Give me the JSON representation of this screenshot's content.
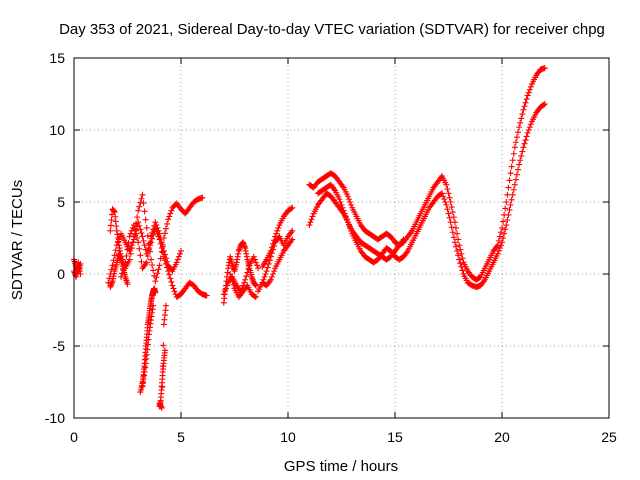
{
  "chart_data": {
    "type": "scatter",
    "title": "Day 353 of 2021, Sidereal Day-to-day VTEC variation (SDTVAR) for receiver chpg",
    "xlabel": "GPS time / hours",
    "ylabel": "SDTVAR / TECUs",
    "xlim": [
      0,
      25
    ],
    "ylim": [
      -10,
      15
    ],
    "xticks": [
      0,
      5,
      10,
      15,
      20,
      25
    ],
    "yticks": [
      -10,
      -5,
      0,
      5,
      10,
      15
    ],
    "grid": true,
    "marker": "+",
    "color": "#ff0000",
    "series": [
      {
        "name": "SDTVAR",
        "segments": [
          {
            "x": [
              0.0,
              0.1,
              0.2,
              0.3
            ],
            "y": [
              1.0,
              0.5,
              0.2,
              0.7
            ]
          },
          {
            "x": [
              0.0,
              0.1,
              0.2,
              0.3
            ],
            "y": [
              0.2,
              -0.2,
              0.8,
              0.0
            ]
          },
          {
            "x": [
              1.7,
              1.8,
              1.9,
              2.0,
              2.1,
              2.2,
              2.4,
              2.6,
              2.8,
              3.0,
              3.2,
              3.4,
              3.6,
              3.8,
              4.0,
              4.2,
              4.4,
              4.6,
              4.8,
              5.0,
              5.2,
              5.4,
              5.6,
              5.8,
              6.0
            ],
            "y": [
              3.0,
              4.5,
              4.3,
              3.0,
              2.0,
              1.2,
              0.4,
              1.0,
              2.6,
              4.4,
              5.5,
              3.2,
              1.0,
              -0.5,
              0.6,
              2.5,
              3.8,
              4.6,
              4.9,
              4.5,
              4.2,
              4.6,
              5.0,
              5.2,
              5.3
            ]
          },
          {
            "x": [
              1.6,
              1.8,
              2.0,
              2.2,
              2.4,
              2.6,
              2.8,
              3.0,
              3.2,
              3.4,
              3.6,
              3.8,
              4.0,
              4.2,
              4.4,
              4.6,
              4.8,
              5.0,
              5.2,
              5.4,
              5.6,
              5.8,
              6.0,
              6.2
            ],
            "y": [
              -0.6,
              0.6,
              2.0,
              2.8,
              2.2,
              1.6,
              2.4,
              3.6,
              2.6,
              1.4,
              2.2,
              3.2,
              2.4,
              1.2,
              0.2,
              -0.8,
              -1.6,
              -1.4,
              -1.0,
              -0.6,
              -0.8,
              -1.2,
              -1.4,
              -1.5
            ]
          },
          {
            "x": [
              2.2,
              2.4,
              2.6,
              2.8,
              3.0,
              3.2,
              3.4,
              3.6,
              3.8,
              4.0,
              4.2,
              4.4,
              4.6,
              4.8,
              5.0
            ],
            "y": [
              -0.2,
              0.8,
              2.6,
              3.4,
              2.2,
              0.4,
              0.8,
              2.6,
              3.6,
              2.8,
              1.6,
              0.6,
              0.2,
              0.8,
              1.6
            ]
          },
          {
            "x": [
              1.7,
              1.8,
              1.9,
              2.0,
              2.1,
              2.2,
              2.3,
              2.4,
              2.5
            ],
            "y": [
              -0.9,
              -0.5,
              0.2,
              0.8,
              1.4,
              1.0,
              0.4,
              -0.2,
              -0.7
            ]
          },
          {
            "x": [
              3.1,
              3.2,
              3.25,
              3.3,
              3.35,
              3.4,
              3.45,
              3.5,
              3.55,
              3.6,
              3.65,
              3.7,
              3.75,
              3.8
            ],
            "y": [
              -8.2,
              -7.6,
              -7.0,
              -6.2,
              -5.2,
              -4.4,
              -3.5,
              -3.0,
              -2.4,
              -1.9,
              -1.5,
              -1.2,
              -1.0,
              -1.3
            ]
          },
          {
            "x": [
              3.2,
              3.3,
              3.4,
              3.5,
              3.6,
              3.7
            ],
            "y": [
              -7.8,
              -6.8,
              -5.6,
              -4.2,
              -3.2,
              -2.2
            ]
          },
          {
            "x": [
              4.0,
              4.05,
              4.1,
              4.15,
              4.2,
              4.25
            ],
            "y": [
              -9.2,
              -8.8,
              -7.8,
              -6.8,
              -6.0,
              -5.3
            ]
          },
          {
            "x": [
              4.0,
              4.1,
              4.2,
              4.3
            ],
            "y": [
              -9.0,
              -9.3,
              -3.5,
              -2.2
            ]
          },
          {
            "x": [
              7.0,
              7.1,
              7.2,
              7.3,
              7.4,
              7.5,
              7.6,
              7.7,
              7.8,
              7.9,
              8.0,
              8.1,
              8.2,
              8.3,
              8.4,
              8.5
            ],
            "y": [
              -2.0,
              -0.8,
              0.4,
              1.2,
              0.6,
              0.2,
              0.8,
              1.6,
              2.0,
              2.2,
              1.8,
              1.0,
              0.4,
              -0.2,
              -0.6,
              -0.8
            ]
          },
          {
            "x": [
              7.0,
              7.2,
              7.4,
              7.6,
              7.8,
              8.0,
              8.2,
              8.4,
              8.6
            ],
            "y": [
              -1.4,
              -0.6,
              -0.2,
              -0.8,
              -1.2,
              -0.4,
              0.6,
              1.2,
              0.4
            ]
          },
          {
            "x": [
              7.3,
              7.5,
              7.7,
              7.9,
              8.1,
              8.3,
              8.5
            ],
            "y": [
              0.0,
              -1.0,
              -1.6,
              -1.2,
              -0.8,
              -1.4,
              -1.6
            ]
          },
          {
            "x": [
              8.8,
              9.0,
              9.2,
              9.4,
              9.6,
              9.8,
              10.0,
              10.2
            ],
            "y": [
              0.5,
              1.0,
              1.6,
              2.6,
              3.4,
              4.0,
              4.4,
              4.6
            ]
          },
          {
            "x": [
              8.8,
              9.0,
              9.2,
              9.4,
              9.6,
              9.8,
              10.0,
              10.2
            ],
            "y": [
              -0.6,
              0.2,
              1.2,
              2.2,
              2.6,
              2.0,
              2.6,
              3.0
            ]
          },
          {
            "x": [
              8.6,
              8.8,
              9.0,
              9.2,
              9.4,
              9.6,
              9.8,
              10.0,
              10.2
            ],
            "y": [
              -1.2,
              -0.6,
              -0.8,
              -0.4,
              0.4,
              1.0,
              1.6,
              2.0,
              2.4
            ]
          },
          {
            "x": [
              11.0,
              11.2,
              11.4,
              11.6,
              11.8,
              12.0,
              12.2,
              12.4,
              12.6,
              12.8,
              13.0,
              13.2,
              13.4,
              13.6,
              13.8,
              14.0,
              14.2,
              14.4,
              14.6,
              14.8,
              15.0,
              15.2,
              15.4,
              15.6,
              15.8,
              16.0,
              16.2,
              16.4,
              16.6,
              16.8,
              17.0,
              17.2,
              17.4,
              17.6,
              17.8,
              18.0,
              18.2,
              18.4,
              18.6,
              18.8,
              19.0,
              19.2,
              19.4,
              19.6,
              19.8,
              20.0,
              20.2,
              20.4,
              20.6,
              20.8,
              21.0,
              21.2,
              21.4,
              21.6,
              21.8,
              22.0
            ],
            "y": [
              6.2,
              6.0,
              6.4,
              6.6,
              6.8,
              7.0,
              6.8,
              6.4,
              6.0,
              5.4,
              4.6,
              4.0,
              3.4,
              3.0,
              2.8,
              2.6,
              2.4,
              2.6,
              2.8,
              2.6,
              2.2,
              2.0,
              2.2,
              2.6,
              3.0,
              3.6,
              4.2,
              4.8,
              5.4,
              6.0,
              6.4,
              6.8,
              6.2,
              5.0,
              3.6,
              2.0,
              0.8,
              0.2,
              -0.2,
              -0.4,
              -0.2,
              0.4,
              1.0,
              1.6,
              2.0,
              3.2,
              5.0,
              7.0,
              8.8,
              10.2,
              11.4,
              12.4,
              13.2,
              13.8,
              14.2,
              14.3
            ]
          },
          {
            "x": [
              11.4,
              11.6,
              11.8,
              12.0,
              12.2,
              12.4,
              12.6,
              12.8,
              13.0,
              13.2,
              13.4,
              13.6,
              13.8,
              14.0,
              14.2,
              14.4,
              14.6,
              14.8,
              15.0,
              15.2,
              15.4,
              15.6,
              15.8,
              16.0,
              16.2,
              16.4,
              16.6,
              16.8,
              17.0,
              17.2,
              17.4,
              17.6,
              17.8,
              18.0,
              18.2,
              18.4,
              18.6,
              18.8,
              19.0,
              19.2,
              19.4,
              19.6,
              19.8,
              20.0,
              20.2,
              20.4,
              20.6,
              20.8,
              21.0,
              21.2,
              21.4,
              21.6,
              21.8,
              22.0
            ],
            "y": [
              5.6,
              5.8,
              6.0,
              6.2,
              5.8,
              5.2,
              4.4,
              3.6,
              2.8,
              2.2,
              1.6,
              1.2,
              1.0,
              0.8,
              1.0,
              1.4,
              1.8,
              1.6,
              1.2,
              1.0,
              1.2,
              1.6,
              2.2,
              2.8,
              3.4,
              4.0,
              4.6,
              5.0,
              5.4,
              5.6,
              4.8,
              3.6,
              2.2,
              1.0,
              0.0,
              -0.6,
              -0.8,
              -0.9,
              -0.8,
              -0.4,
              0.2,
              0.8,
              1.4,
              2.2,
              3.4,
              4.8,
              6.2,
              7.6,
              8.8,
              9.8,
              10.6,
              11.2,
              11.6,
              11.8
            ]
          },
          {
            "x": [
              11.0,
              11.2,
              11.4,
              11.6,
              11.8,
              12.0,
              12.2,
              12.4,
              12.6,
              12.8,
              13.0,
              13.2,
              13.4,
              13.6,
              13.8,
              14.0,
              14.2,
              14.4,
              14.6,
              14.8,
              15.0,
              15.2,
              15.4
            ],
            "y": [
              3.4,
              4.2,
              4.8,
              5.2,
              5.6,
              5.4,
              5.0,
              4.6,
              4.2,
              3.6,
              3.0,
              2.6,
              2.2,
              2.0,
              1.8,
              1.6,
              1.4,
              1.2,
              1.0,
              1.2,
              1.6,
              2.0,
              2.4
            ]
          }
        ]
      }
    ]
  }
}
